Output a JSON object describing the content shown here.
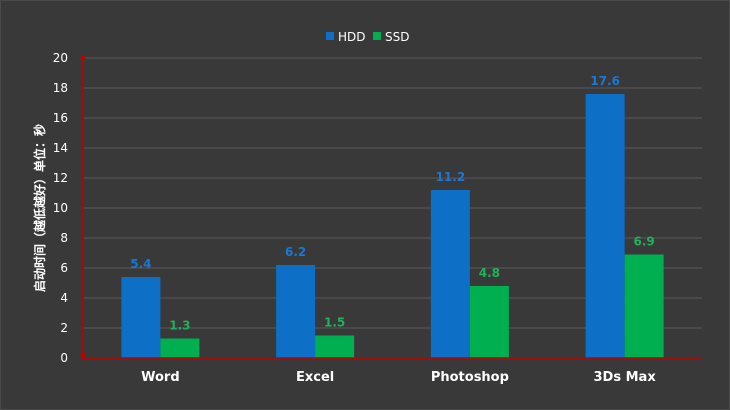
{
  "chart_data": {
    "type": "bar",
    "categories": [
      "Word",
      "Excel",
      "Photoshop",
      "3Ds Max"
    ],
    "series": [
      {
        "name": "HDD",
        "values": [
          5.4,
          6.2,
          11.2,
          17.6
        ],
        "color": "#0e6fc7",
        "label_color": "#1a78d4"
      },
      {
        "name": "SSD",
        "values": [
          1.3,
          1.5,
          4.8,
          6.9
        ],
        "color": "#00b050",
        "label_color": "#1fb257"
      }
    ],
    "ylabel": "启动时间（越低越好）单位：秒",
    "ylim": [
      0,
      20
    ],
    "yticks": [
      0,
      2,
      4,
      6,
      8,
      10,
      12,
      14,
      16,
      18,
      20
    ],
    "grid": true,
    "legend": "top-center",
    "axis_color": "#c00000",
    "grid_color": "#595959"
  }
}
